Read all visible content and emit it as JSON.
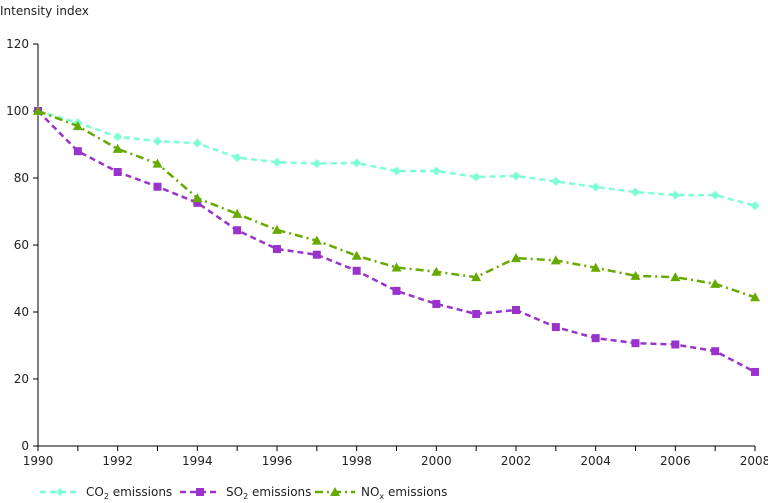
{
  "chart_data": {
    "type": "line",
    "ylabel": "Intensity index",
    "ylim": [
      0,
      120
    ],
    "yticks": [
      0,
      20,
      40,
      60,
      80,
      100,
      120
    ],
    "xlim": [
      1990,
      2008
    ],
    "xticks": [
      1990,
      1992,
      1994,
      1996,
      1998,
      2000,
      2002,
      2004,
      2006,
      2008
    ],
    "grid": false,
    "legend_position": "bottom",
    "x": [
      1990,
      1991,
      1992,
      1993,
      1994,
      1995,
      1996,
      1997,
      1998,
      1999,
      2000,
      2001,
      2002,
      2003,
      2004,
      2005,
      2006,
      2007,
      2008
    ],
    "series": [
      {
        "name": "CO2 emissions",
        "label_main": "CO",
        "label_sub": "2",
        "label_rest": " emissions",
        "color": "#7fffd4",
        "marker": "diamond",
        "dash": "6,4",
        "values": [
          100,
          96.5,
          92.3,
          91,
          90.4,
          86.1,
          84.7,
          84.3,
          84.5,
          82.1,
          82.1,
          80.3,
          80.6,
          79,
          77.3,
          75.8,
          74.9,
          74.9,
          71.7
        ]
      },
      {
        "name": "SO2 emissions",
        "label_main": "SO",
        "label_sub": "2",
        "label_rest": " emissions",
        "color": "#9933cc",
        "marker": "square",
        "dash": "6,4",
        "values": [
          100,
          88,
          81.8,
          77.4,
          72.6,
          64.4,
          58.8,
          57.1,
          52.3,
          46.3,
          42.4,
          39.4,
          40.6,
          35.5,
          32.2,
          30.7,
          30.3,
          28.3,
          22.1
        ]
      },
      {
        "name": "NOx emissions",
        "label_main": "NO",
        "label_sub": "x",
        "label_rest": " emissions",
        "color": "#66aa00",
        "marker": "triangle",
        "dash": "8,4,2,4",
        "values": [
          100,
          95.5,
          88.7,
          84.3,
          74,
          69.3,
          64.5,
          61.3,
          56.8,
          53.3,
          52,
          50.4,
          56.1,
          55.4,
          53.2,
          50.8,
          50.4,
          48.4,
          44.4
        ]
      }
    ]
  }
}
